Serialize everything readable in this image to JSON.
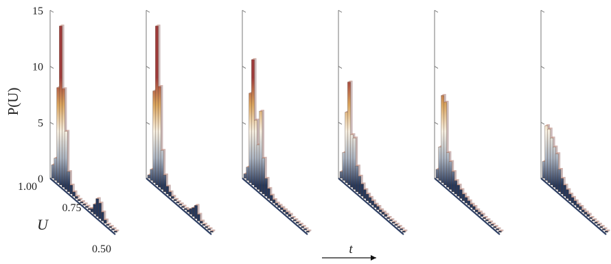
{
  "chart_data": {
    "type": "bar",
    "xlabel": "U",
    "ylabel": "P(U)",
    "time_label": "t",
    "ylim": [
      0,
      15
    ],
    "y_ticks": [
      0,
      5,
      10,
      15
    ],
    "u_ticks": [
      "1.00",
      "0.75",
      "0.50"
    ],
    "u_range": [
      1.0,
      0.5
    ],
    "bins": [
      1.0,
      0.98,
      0.96,
      0.94,
      0.92,
      0.9,
      0.88,
      0.86,
      0.84,
      0.82,
      0.8,
      0.78,
      0.76,
      0.74,
      0.72,
      0.7,
      0.68,
      0.66,
      0.64,
      0.62,
      0.6,
      0.58,
      0.56,
      0.54,
      0.52
    ],
    "colormap": [
      "#27385a",
      "#a9b3c1",
      "#f5eee0",
      "#d8a35d",
      "#9e3b3b"
    ],
    "series": [
      {
        "values": [
          1.2,
          2.0,
          8.5,
          14.2,
          8.8,
          5.2,
          1.8,
          0.8,
          0.4,
          0.2,
          0.1,
          0.1,
          0.1,
          0.1,
          0.1,
          0.3,
          0.9,
          1.6,
          1.4,
          0.8,
          0.3,
          0.1,
          0.1,
          0.0,
          0.0
        ]
      },
      {
        "values": [
          0.3,
          1.0,
          8.2,
          14.2,
          9.0,
          3.5,
          1.5,
          0.7,
          0.4,
          0.2,
          0.1,
          0.1,
          0.1,
          0.1,
          0.1,
          0.2,
          0.5,
          0.8,
          1.2,
          0.6,
          0.2,
          0.1,
          0.0,
          0.0,
          0.0
        ]
      },
      {
        "values": [
          0.4,
          1.2,
          8.0,
          11.2,
          6.0,
          4.0,
          7.2,
          3.2,
          1.6,
          0.9,
          0.5,
          0.3,
          0.2,
          0.2,
          0.2,
          0.2,
          0.2,
          0.2,
          0.1,
          0.1,
          0.1,
          0.0,
          0.0,
          0.0,
          0.0
        ]
      },
      {
        "values": [
          0.6,
          2.5,
          6.3,
          9.2,
          4.7,
          4.6,
          2.3,
          1.6,
          1.1,
          0.8,
          0.6,
          0.5,
          0.4,
          0.3,
          0.3,
          0.2,
          0.2,
          0.2,
          0.1,
          0.1,
          0.1,
          0.0,
          0.0,
          0.0,
          0.0
        ]
      },
      {
        "values": [
          0.8,
          3.0,
          7.8,
          7.4,
          3.1,
          2.5,
          1.8,
          1.2,
          1.0,
          0.8,
          0.6,
          0.5,
          0.4,
          0.3,
          0.3,
          0.2,
          0.2,
          0.2,
          0.1,
          0.1,
          0.1,
          0.0,
          0.0,
          0.0,
          0.0
        ]
      },
      {
        "values": [
          1.5,
          4.9,
          4.8,
          4.2,
          3.6,
          3.2,
          2.0,
          1.4,
          1.0,
          0.8,
          0.6,
          0.5,
          0.4,
          0.3,
          0.3,
          0.2,
          0.2,
          0.2,
          0.1,
          0.1,
          0.1,
          0.0,
          0.0,
          0.0,
          0.0
        ]
      }
    ]
  }
}
